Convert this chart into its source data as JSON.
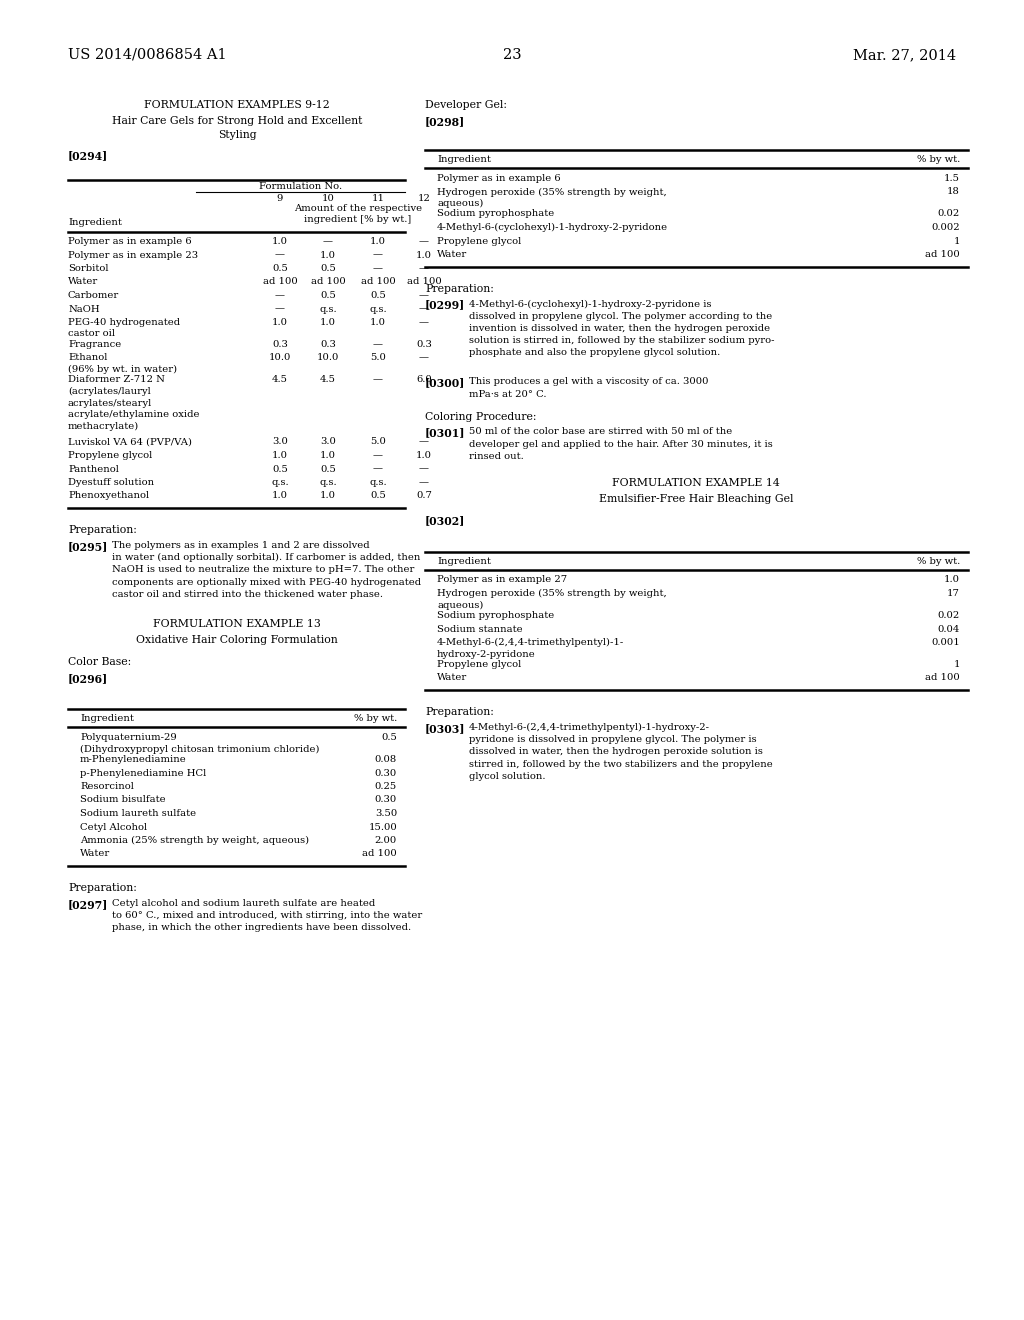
{
  "bg_color": "#ffffff",
  "header_left": "US 2014/0086854 A1",
  "header_right": "Mar. 27, 2014",
  "page_number": "23",
  "left_col": {
    "title1": "FORMULATION EXAMPLES 9-12",
    "title2": "Hair Care Gels for Strong Hold and Excellent\nStyling",
    "ref1": "[0294]",
    "table1": {
      "header_span": "Formulation No.",
      "col_headers": [
        "9",
        "10",
        "11",
        "12"
      ],
      "subheader": "Amount of the respective\ningredient [% by wt.]",
      "ingredient_col": "Ingredient",
      "rows": [
        [
          "Polymer as in example 6",
          "1.0",
          "—",
          "1.0",
          "—"
        ],
        [
          "Polymer as in example 23",
          "—",
          "1.0",
          "—",
          "1.0"
        ],
        [
          "Sorbitol",
          "0.5",
          "0.5",
          "—",
          "—"
        ],
        [
          "Water",
          "ad 100",
          "ad 100",
          "ad 100",
          "ad 100"
        ],
        [
          "Carbomer",
          "—",
          "0.5",
          "0.5",
          "—"
        ],
        [
          "NaOH",
          "—",
          "q.s.",
          "q.s.",
          "—"
        ],
        [
          "PEG-40 hydrogenated\ncastor oil",
          "1.0",
          "1.0",
          "1.0",
          "—"
        ],
        [
          "Fragrance",
          "0.3",
          "0.3",
          "—",
          "0.3"
        ],
        [
          "Ethanol\n(96% by wt. in water)",
          "10.0",
          "10.0",
          "5.0",
          "—"
        ],
        [
          "Diaformer Z-712 N\n(acrylates/lauryl\nacrylates/stearyl\nacrylate/ethylamine oxide\nmethacrylate)",
          "4.5",
          "4.5",
          "—",
          "6.0"
        ],
        [
          "Luviskol VA 64 (PVP/VA)",
          "3.0",
          "3.0",
          "5.0",
          "—"
        ],
        [
          "Propylene glycol",
          "1.0",
          "1.0",
          "—",
          "1.0"
        ],
        [
          "Panthenol",
          "0.5",
          "0.5",
          "—",
          "—"
        ],
        [
          "Dyestuff solution",
          "q.s.",
          "q.s.",
          "q.s.",
          "—"
        ],
        [
          "Phenoxyethanol",
          "1.0",
          "1.0",
          "0.5",
          "0.7"
        ]
      ]
    },
    "prep_title": "Preparation:",
    "prep_ref": "[0295]",
    "prep_text": "The polymers as in examples 1 and 2 are dissolved\nin water (and optionally sorbital). If carbomer is added, then\nNaOH is used to neutralize the mixture to pH=7. The other\ncomponents are optionally mixed with PEG-40 hydrogenated\ncastor oil and stirred into the thickened water phase.",
    "title3": "FORMULATION EXAMPLE 13",
    "title4": "Oxidative Hair Coloring Formulation",
    "colorbase": "Color Base:",
    "ref2": "[0296]",
    "table2": {
      "col1": "Ingredient",
      "col2": "% by wt.",
      "rows": [
        [
          "Polyquaternium-29\n(Dihydroxypropyl chitosan trimonium chloride)",
          "0.5"
        ],
        [
          "m-Phenylenediamine",
          "0.08"
        ],
        [
          "p-Phenylenediamine HCl",
          "0.30"
        ],
        [
          "Resorcinol",
          "0.25"
        ],
        [
          "Sodium bisulfate",
          "0.30"
        ],
        [
          "Sodium laureth sulfate",
          "3.50"
        ],
        [
          "Cetyl Alcohol",
          "15.00"
        ],
        [
          "Ammonia (25% strength by weight, aqueous)",
          "2.00"
        ],
        [
          "Water",
          "ad 100"
        ]
      ]
    },
    "prep2_title": "Preparation:",
    "prep2_ref": "[0297]",
    "prep2_text": "Cetyl alcohol and sodium laureth sulfate are heated\nto 60° C., mixed and introduced, with stirring, into the water\nphase, in which the other ingredients have been dissolved."
  },
  "right_col": {
    "devgel": "Developer Gel:",
    "ref3": "[0298]",
    "table3": {
      "col1": "Ingredient",
      "col2": "% by wt.",
      "rows": [
        [
          "Polymer as in example 6",
          "1.5"
        ],
        [
          "Hydrogen peroxide (35% strength by weight,\naqueous)",
          "18"
        ],
        [
          "Sodium pyrophosphate",
          "0.02"
        ],
        [
          "4-Methyl-6-(cyclohexyl)-1-hydroxy-2-pyridone",
          "0.002"
        ],
        [
          "Propylene glycol",
          "1"
        ],
        [
          "Water",
          "ad 100"
        ]
      ]
    },
    "prep3_title": "Preparation:",
    "prep3_ref": "[0299]",
    "prep3_text": "4-Methyl-6-(cyclohexyl)-1-hydroxy-2-pyridone is\ndissolved in propylene glycol. The polymer according to the\ninvention is dissolved in water, then the hydrogen peroxide\nsolution is stirred in, followed by the stabilizer sodium pyro-\nphosphate and also the propylene glycol solution.",
    "prep4_ref": "[0300]",
    "prep4_text": "This produces a gel with a viscosity of ca. 3000\nmPa·s at 20° C.",
    "coloring": "Coloring Procedure:",
    "prep5_ref": "[0301]",
    "prep5_text": "50 ml of the color base are stirred with 50 ml of the\ndeveloper gel and applied to the hair. After 30 minutes, it is\nrinsed out.",
    "title5": "FORMULATION EXAMPLE 14",
    "title6": "Emulsifier-Free Hair Bleaching Gel",
    "ref4": "[0302]",
    "table4": {
      "col1": "Ingredient",
      "col2": "% by wt.",
      "rows": [
        [
          "Polymer as in example 27",
          "1.0"
        ],
        [
          "Hydrogen peroxide (35% strength by weight,\naqueous)",
          "17"
        ],
        [
          "Sodium pyrophosphate",
          "0.02"
        ],
        [
          "Sodium stannate",
          "0.04"
        ],
        [
          "4-Methyl-6-(2,4,4-trimethylpentyl)-1-\nhydroxy-2-pyridone",
          "0.001"
        ],
        [
          "Propylene glycol",
          "1"
        ],
        [
          "Water",
          "ad 100"
        ]
      ]
    },
    "prep6_title": "Preparation:",
    "prep6_ref": "[0303]",
    "prep6_text": "4-Methyl-6-(2,4,4-trimethylpentyl)-1-hydroxy-2-\npyridone is dissolved in propylene glycol. The polymer is\ndissolved in water, then the hydrogen peroxide solution is\nstirred in, followed by the two stabilizers and the propylene\nglycol solution."
  }
}
